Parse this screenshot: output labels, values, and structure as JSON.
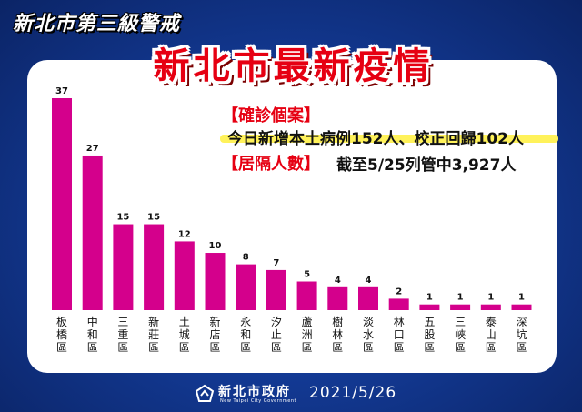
{
  "header": {
    "title": "新北市第三級警戒"
  },
  "main_title": "新北市最新疫情",
  "info": {
    "confirmed_label": "【確診個案】",
    "confirmed_text": "今日新增本土病例152人、校正回歸102人",
    "quarantine_label": "【居隔人數】",
    "quarantine_text": "截至5/25列管中3,927人"
  },
  "footer": {
    "org_name": "新北市政府",
    "org_name_en": "New Taipei City Government",
    "date": "2021/5/26"
  },
  "colors": {
    "bar": "#d4008c",
    "title_red": "#e60012",
    "background": "#0d2a78"
  },
  "chart_data": {
    "type": "bar",
    "categories": [
      "板橋區",
      "中和區",
      "三重區",
      "新莊區",
      "土城區",
      "新店區",
      "永和區",
      "汐止區",
      "蘆洲區",
      "樹林區",
      "淡水區",
      "林口區",
      "五股區",
      "三峽區",
      "泰山區",
      "深坑區"
    ],
    "values": [
      37,
      27,
      15,
      15,
      12,
      10,
      8,
      7,
      5,
      4,
      4,
      2,
      1,
      1,
      1,
      1
    ],
    "title": "",
    "xlabel": "",
    "ylabel": "",
    "ylim": [
      0,
      37
    ]
  }
}
